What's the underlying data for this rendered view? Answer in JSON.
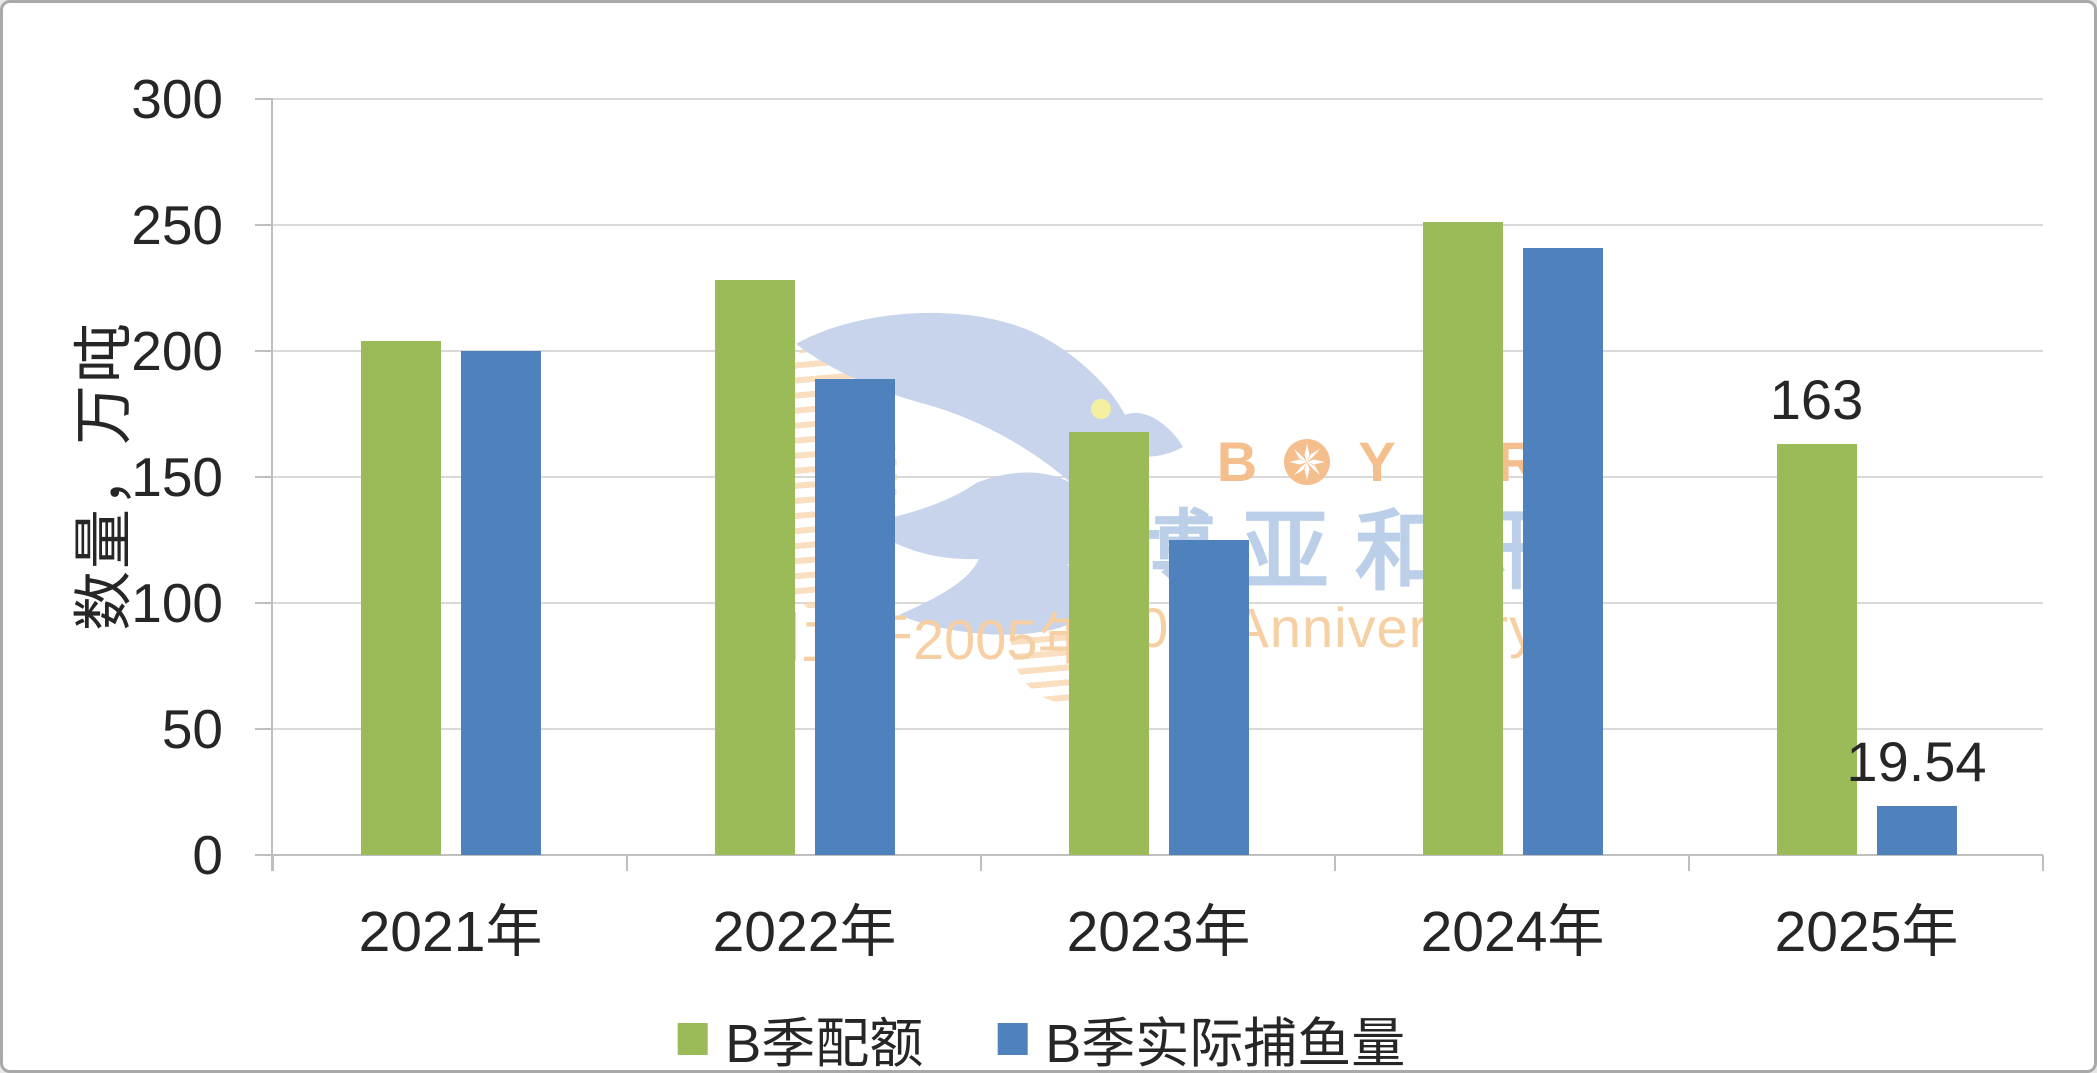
{
  "chart_data": {
    "type": "bar",
    "title": "",
    "categories": [
      "2021年",
      "2022年",
      "2023年",
      "2024年",
      "2025年"
    ],
    "series": [
      {
        "name": "B季配额",
        "color": "#9bbb59",
        "values": [
          204,
          228,
          168,
          251,
          163
        ],
        "data_labels": [
          null,
          null,
          null,
          null,
          "163"
        ]
      },
      {
        "name": "B季实际捕鱼量",
        "color": "#4f81bd",
        "values": [
          200,
          189,
          125,
          241,
          19.54
        ],
        "data_labels": [
          null,
          null,
          null,
          null,
          "19.54"
        ]
      }
    ],
    "xlabel": "",
    "ylabel": "数量，万吨",
    "ylim": [
      0,
      300
    ],
    "yticks": [
      0,
      50,
      100,
      150,
      200,
      250,
      300
    ],
    "grid": true,
    "legend_position": "bottom"
  },
  "y_axis": {
    "title": "数量，万吨"
  },
  "legend": {
    "items": [
      {
        "label": "B季配额",
        "color": "#9bbb59"
      },
      {
        "label": "B季实际捕鱼量",
        "color": "#4f81bd"
      }
    ]
  },
  "watermark": {
    "brand_letter_1": "B",
    "brand_letter_2": "Y",
    "brand_letter_3": "A",
    "brand_letter_4": "R",
    "brand_cn": "博亚和讯",
    "founded_left": "创立于2005年",
    "founded_right": "20th Anniversary",
    "bird_color": "#c8d4ec",
    "eye_color": "#f3f0a2",
    "orange_color": "#f4be8d",
    "cn_color": "#bccfe9"
  },
  "colors": {
    "gridline": "#d9d9d9",
    "axis": "#bfbfbf",
    "text": "#262626",
    "background": "#ffffff",
    "border": "#a9a9a9"
  }
}
